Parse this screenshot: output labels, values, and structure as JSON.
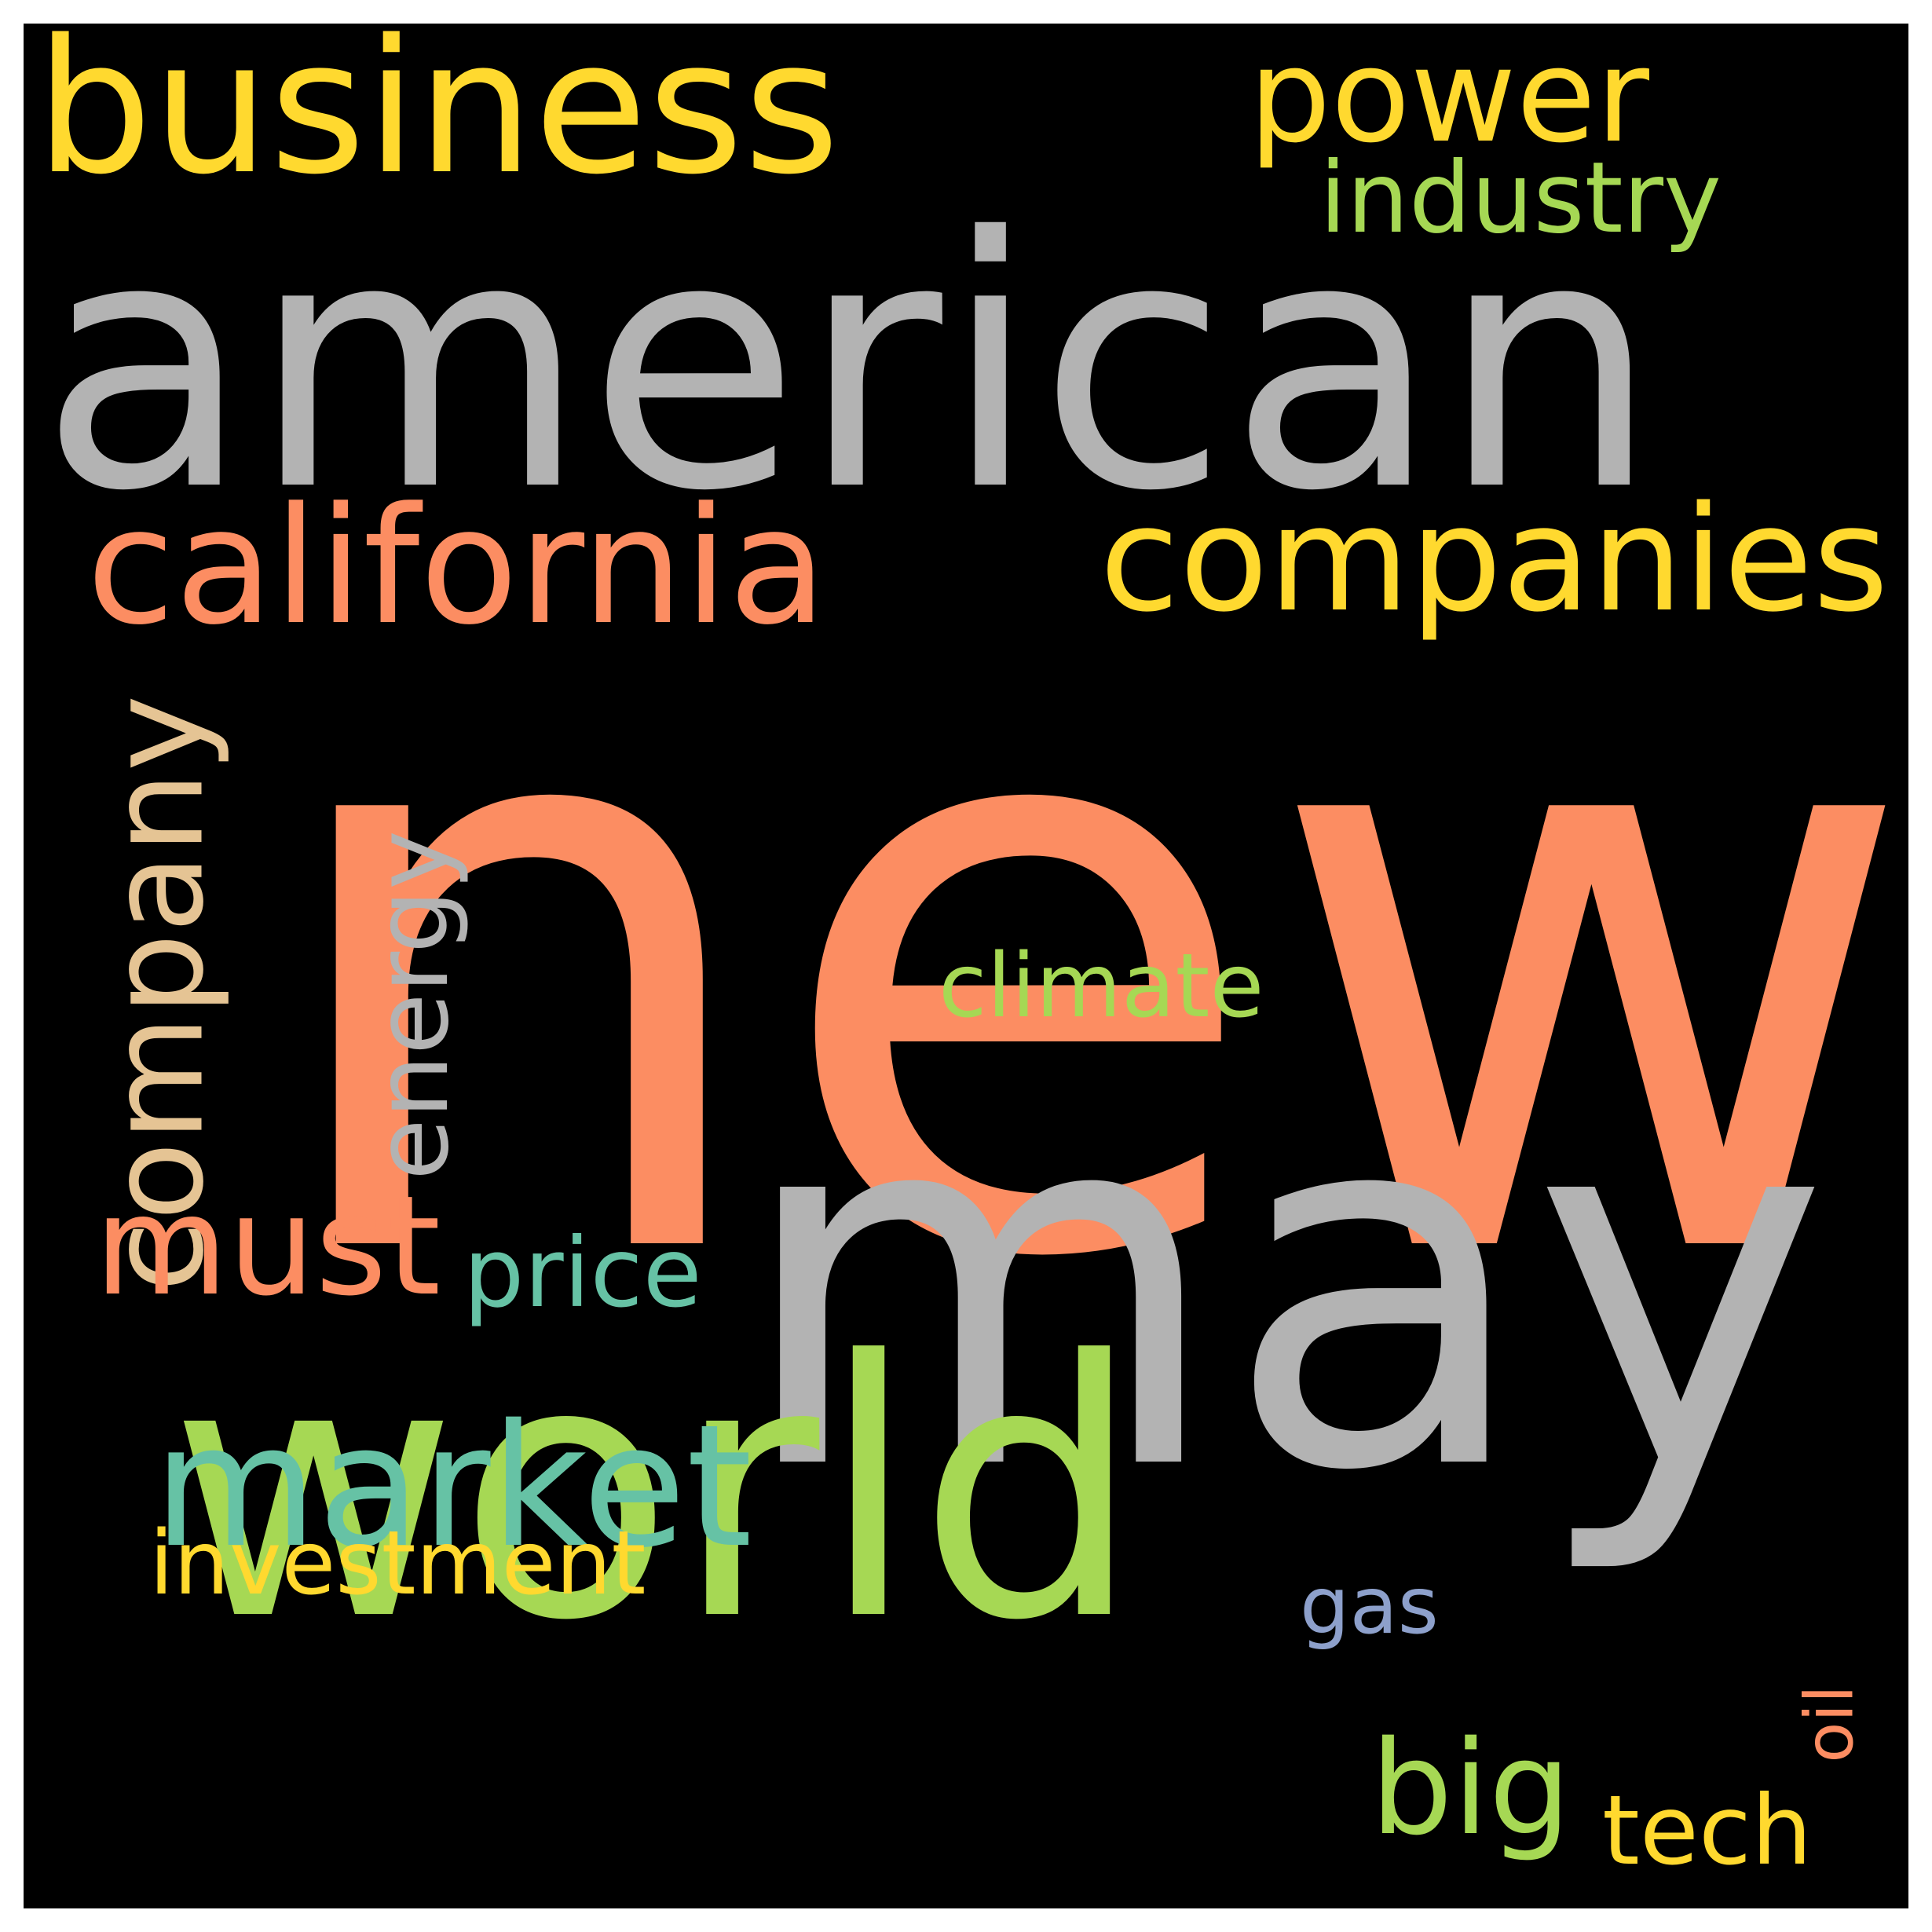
{
  "background_color": "#000000",
  "words": {
    "new": {
      "text": "new",
      "color": "#fc8d62"
    },
    "american": {
      "text": "american",
      "color": "#b3b3b3"
    },
    "may": {
      "text": "may",
      "color": "#b3b3b3"
    },
    "world": {
      "text": "world",
      "color": "#a6d854"
    },
    "business": {
      "text": "business",
      "color": "#ffd92f"
    },
    "california": {
      "text": "california",
      "color": "#fc8d62"
    },
    "companies": {
      "text": "companies",
      "color": "#ffd92f"
    },
    "power": {
      "text": "power",
      "color": "#ffd92f"
    },
    "industry": {
      "text": "industry",
      "color": "#a6d854"
    },
    "company": {
      "text": "company",
      "color": "#e5c494"
    },
    "energy": {
      "text": "energy",
      "color": "#b3b3b3"
    },
    "climate": {
      "text": "climate",
      "color": "#a6d854"
    },
    "must": {
      "text": "must",
      "color": "#fc8d62"
    },
    "price": {
      "text": "price",
      "color": "#66c2a5"
    },
    "market": {
      "text": "market",
      "color": "#66c2a5"
    },
    "investment": {
      "text": "investment",
      "color": "#ffd92f"
    },
    "gas": {
      "text": "gas",
      "color": "#8da0cb"
    },
    "big": {
      "text": "big",
      "color": "#a6d854"
    },
    "tech": {
      "text": "tech",
      "color": "#ffd92f"
    },
    "oil": {
      "text": "oil",
      "color": "#fc8d62"
    }
  }
}
